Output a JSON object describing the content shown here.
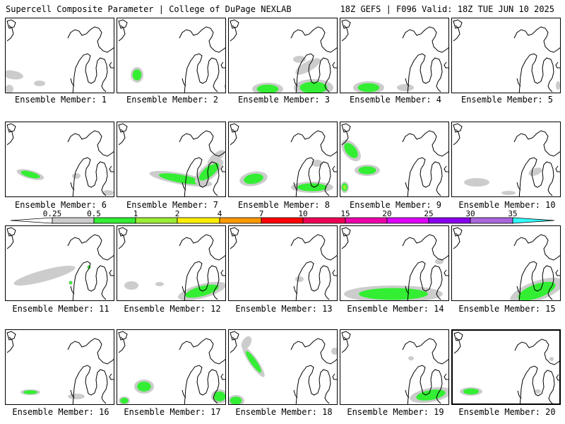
{
  "header": {
    "left": "Supercell Composite Parameter | College of DuPage NEXLAB",
    "right": "18Z GEFS | F096 Valid: 18Z TUE JUN 10 2025"
  },
  "colorbar": {
    "ticks": [
      "0.25",
      "0.5",
      "1",
      "2",
      "4",
      "7",
      "10",
      "15",
      "20",
      "25",
      "30",
      "35"
    ],
    "colors": [
      "#cccccc",
      "#33ee33",
      "#99ee33",
      "#ffee00",
      "#ff9900",
      "#ff0000",
      "#ee0055",
      "#ee00aa",
      "#dd00ff",
      "#8800ee",
      "#aa66dd",
      "#33ffff"
    ]
  },
  "panels": [
    {
      "label": "Ensemble Member: 1"
    },
    {
      "label": "Ensemble Member: 2"
    },
    {
      "label": "Ensemble Member: 3"
    },
    {
      "label": "Ensemble Member: 4"
    },
    {
      "label": "Ensemble Member: 5"
    },
    {
      "label": "Ensemble Member: 6"
    },
    {
      "label": "Ensemble Member: 7"
    },
    {
      "label": "Ensemble Member: 8"
    },
    {
      "label": "Ensemble Member: 9"
    },
    {
      "label": "Ensemble Member: 10"
    },
    {
      "label": "Ensemble Member: 11"
    },
    {
      "label": "Ensemble Member: 12"
    },
    {
      "label": "Ensemble Member: 13"
    },
    {
      "label": "Ensemble Member: 14"
    },
    {
      "label": "Ensemble Member: 15"
    },
    {
      "label": "Ensemble Member: 16"
    },
    {
      "label": "Ensemble Member: 17"
    },
    {
      "label": "Ensemble Member: 18"
    },
    {
      "label": "Ensemble Member: 19"
    },
    {
      "label": "Ensemble Member: 20"
    }
  ]
}
